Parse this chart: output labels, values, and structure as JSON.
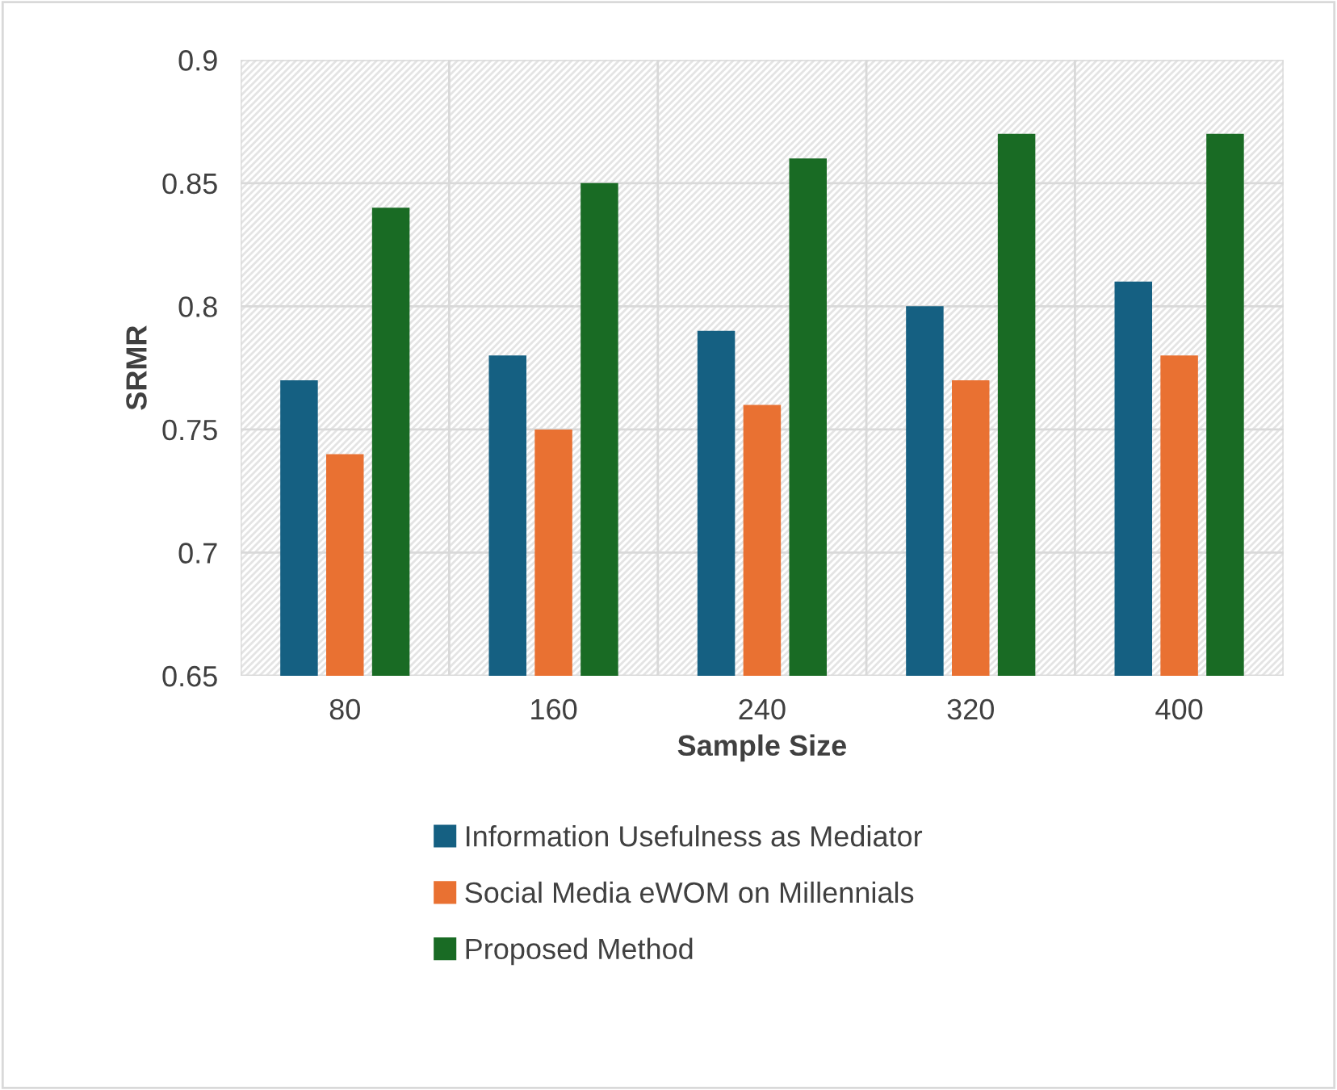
{
  "chart_data": {
    "type": "bar",
    "xlabel": "Sample Size",
    "ylabel": "SRMR",
    "categories": [
      "80",
      "160",
      "240",
      "320",
      "400"
    ],
    "series": [
      {
        "name": "Information Usefulness as Mediator",
        "color": "#156082",
        "values": [
          0.77,
          0.78,
          0.79,
          0.8,
          0.81
        ]
      },
      {
        "name": "Social Media eWOM on Millennials",
        "color": "#e97132",
        "values": [
          0.74,
          0.75,
          0.76,
          0.77,
          0.78
        ]
      },
      {
        "name": "Proposed Method",
        "color": "#196b24",
        "values": [
          0.84,
          0.85,
          0.86,
          0.87,
          0.87
        ]
      }
    ],
    "ylim": [
      0.65,
      0.9
    ],
    "yticks": [
      0.65,
      0.7,
      0.75,
      0.8,
      0.85,
      0.9
    ],
    "grid": true,
    "legend": "bottom"
  }
}
